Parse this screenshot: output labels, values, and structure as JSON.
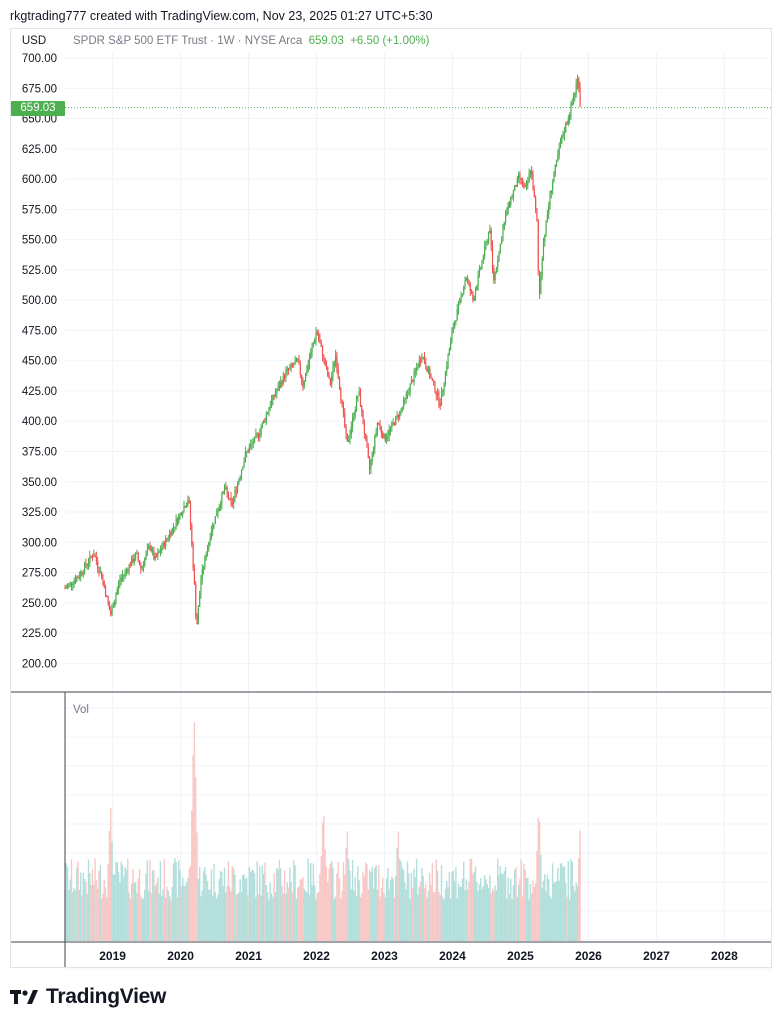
{
  "header": {
    "credit": "rkgtrading777 created with TradingView.com, Nov 23, 2025 01:27 UTC+5:30",
    "currency": "USD"
  },
  "legend": {
    "symbol": "SPDR S&P 500 ETF Trust · 1W · NYSE Arca",
    "price": "659.03",
    "change": "+6.50 (+1.00%)"
  },
  "price_badge": "659.03",
  "volume_label": "Vol",
  "brand": "TradingView",
  "colors": {
    "up": "#4caf50",
    "down": "#ef5350",
    "up_vol": "#b2dfdb",
    "down_vol": "#f8c8c6",
    "grid": "#f0f3fa"
  },
  "chart_data": {
    "type": "candlestick",
    "symbol": "SPY",
    "interval": "1W",
    "y_ticks": [
      "700.00",
      "675.00",
      "650.00",
      "625.00",
      "600.00",
      "575.00",
      "550.00",
      "525.00",
      "500.00",
      "475.00",
      "450.00",
      "425.00",
      "400.00",
      "375.00",
      "350.00",
      "325.00",
      "300.00",
      "275.00",
      "250.00",
      "225.00",
      "200.00"
    ],
    "ylim": [
      178,
      705
    ],
    "x_ticks": [
      "2019",
      "2020",
      "2021",
      "2022",
      "2023",
      "2024",
      "2025",
      "2026",
      "2027",
      "2028"
    ],
    "last_price": 659.03,
    "price_path": [
      {
        "t": 2018.3,
        "v": 262
      },
      {
        "t": 2018.5,
        "v": 272
      },
      {
        "t": 2018.72,
        "v": 291
      },
      {
        "t": 2018.85,
        "v": 270
      },
      {
        "t": 2018.97,
        "v": 240
      },
      {
        "t": 2019.1,
        "v": 268
      },
      {
        "t": 2019.35,
        "v": 290
      },
      {
        "t": 2019.42,
        "v": 278
      },
      {
        "t": 2019.55,
        "v": 298
      },
      {
        "t": 2019.62,
        "v": 285
      },
      {
        "t": 2019.85,
        "v": 308
      },
      {
        "t": 2020.12,
        "v": 337
      },
      {
        "t": 2020.22,
        "v": 250
      },
      {
        "t": 2020.23,
        "v": 225
      },
      {
        "t": 2020.3,
        "v": 270
      },
      {
        "t": 2020.45,
        "v": 310
      },
      {
        "t": 2020.65,
        "v": 345
      },
      {
        "t": 2020.75,
        "v": 330
      },
      {
        "t": 2020.95,
        "v": 372
      },
      {
        "t": 2021.15,
        "v": 390
      },
      {
        "t": 2021.35,
        "v": 418
      },
      {
        "t": 2021.55,
        "v": 440
      },
      {
        "t": 2021.72,
        "v": 450
      },
      {
        "t": 2021.8,
        "v": 430
      },
      {
        "t": 2022.0,
        "v": 475
      },
      {
        "t": 2022.2,
        "v": 430
      },
      {
        "t": 2022.28,
        "v": 455
      },
      {
        "t": 2022.45,
        "v": 380
      },
      {
        "t": 2022.62,
        "v": 425
      },
      {
        "t": 2022.78,
        "v": 360
      },
      {
        "t": 2022.9,
        "v": 400
      },
      {
        "t": 2023.0,
        "v": 385
      },
      {
        "t": 2023.25,
        "v": 410
      },
      {
        "t": 2023.55,
        "v": 455
      },
      {
        "t": 2023.82,
        "v": 415
      },
      {
        "t": 2024.0,
        "v": 475
      },
      {
        "t": 2024.2,
        "v": 520
      },
      {
        "t": 2024.3,
        "v": 500
      },
      {
        "t": 2024.55,
        "v": 560
      },
      {
        "t": 2024.6,
        "v": 515
      },
      {
        "t": 2024.8,
        "v": 575
      },
      {
        "t": 2024.98,
        "v": 602
      },
      {
        "t": 2025.08,
        "v": 590
      },
      {
        "t": 2025.15,
        "v": 610
      },
      {
        "t": 2025.25,
        "v": 560
      },
      {
        "t": 2025.27,
        "v": 497
      },
      {
        "t": 2025.33,
        "v": 545
      },
      {
        "t": 2025.45,
        "v": 592
      },
      {
        "t": 2025.6,
        "v": 632
      },
      {
        "t": 2025.75,
        "v": 660
      },
      {
        "t": 2025.85,
        "v": 685
      },
      {
        "t": 2025.88,
        "v": 659
      }
    ],
    "volume_spikes": [
      {
        "t": 2018.97,
        "v": 0.6
      },
      {
        "t": 2020.2,
        "v": 1.0
      },
      {
        "t": 2022.1,
        "v": 0.6
      },
      {
        "t": 2022.45,
        "v": 0.5
      },
      {
        "t": 2023.2,
        "v": 0.5
      },
      {
        "t": 2025.27,
        "v": 0.6
      },
      {
        "t": 2025.88,
        "v": 0.5
      }
    ]
  }
}
